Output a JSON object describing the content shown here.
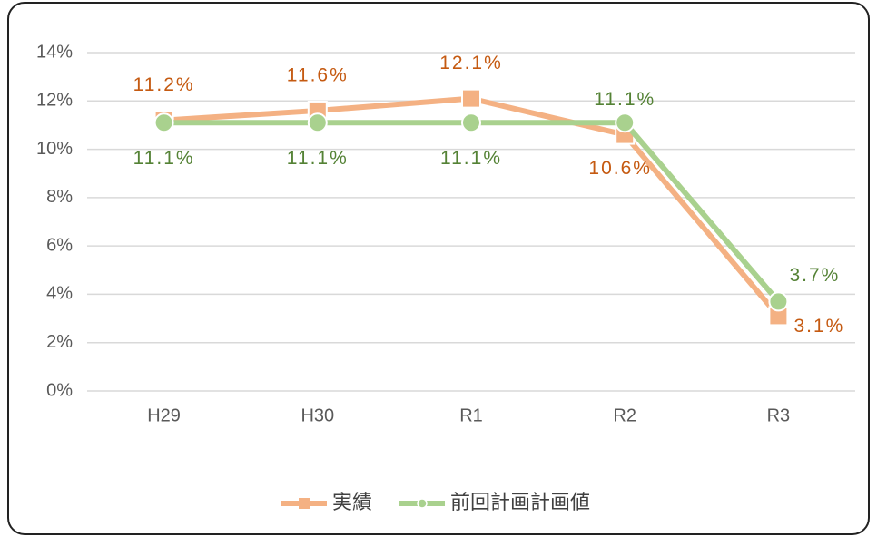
{
  "chart_data": {
    "type": "line",
    "categories": [
      "H29",
      "H30",
      "R1",
      "R2",
      "R3"
    ],
    "series": [
      {
        "name": "実績",
        "color": "#f4b183",
        "label_color": "#c55a11",
        "marker": "square",
        "values": [
          11.2,
          11.6,
          12.1,
          10.6,
          3.1
        ],
        "value_labels": [
          "11.2%",
          "11.6%",
          "12.1%",
          "10.6%",
          "3.1%"
        ]
      },
      {
        "name": "前回計画計画値",
        "color": "#a9d18e",
        "label_color": "#548235",
        "marker": "circle",
        "values": [
          11.1,
          11.1,
          11.1,
          11.1,
          3.7
        ],
        "value_labels": [
          "11.1%",
          "11.1%",
          "11.1%",
          "11.1%",
          "3.7%"
        ]
      }
    ],
    "ylim": [
      0,
      14
    ],
    "yticks": [
      {
        "value": 0,
        "label": "0%"
      },
      {
        "value": 2,
        "label": "2%"
      },
      {
        "value": 4,
        "label": "4%"
      },
      {
        "value": 6,
        "label": "6%"
      },
      {
        "value": 8,
        "label": "8%"
      },
      {
        "value": 10,
        "label": "10%"
      },
      {
        "value": 12,
        "label": "12%"
      },
      {
        "value": 14,
        "label": "14%"
      }
    ],
    "grid": true,
    "legend": "bottom"
  }
}
